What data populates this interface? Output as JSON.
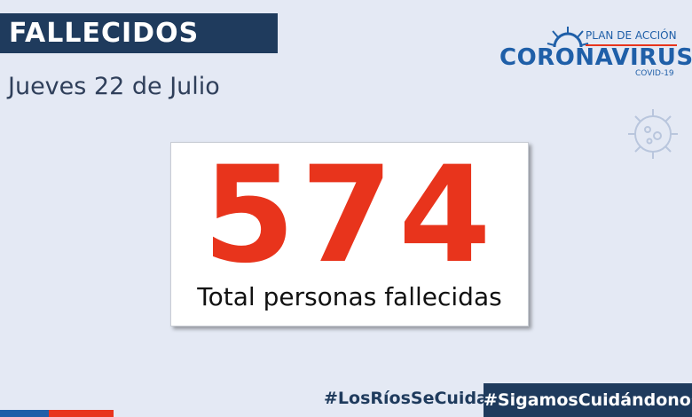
{
  "header": {
    "title": "FALLECIDOS",
    "date": "Jueves 22 de Julio"
  },
  "logo": {
    "line1": "PLAN DE ACCIÓN",
    "line2": "CORONAVIRUS",
    "line3": "COVID-19"
  },
  "main": {
    "value": 574,
    "label": "Total personas fallecidas"
  },
  "footer": {
    "hashtag_left": "#LosRíosSeCuida",
    "hashtag_right": "#SigamosCuidándonos"
  }
}
